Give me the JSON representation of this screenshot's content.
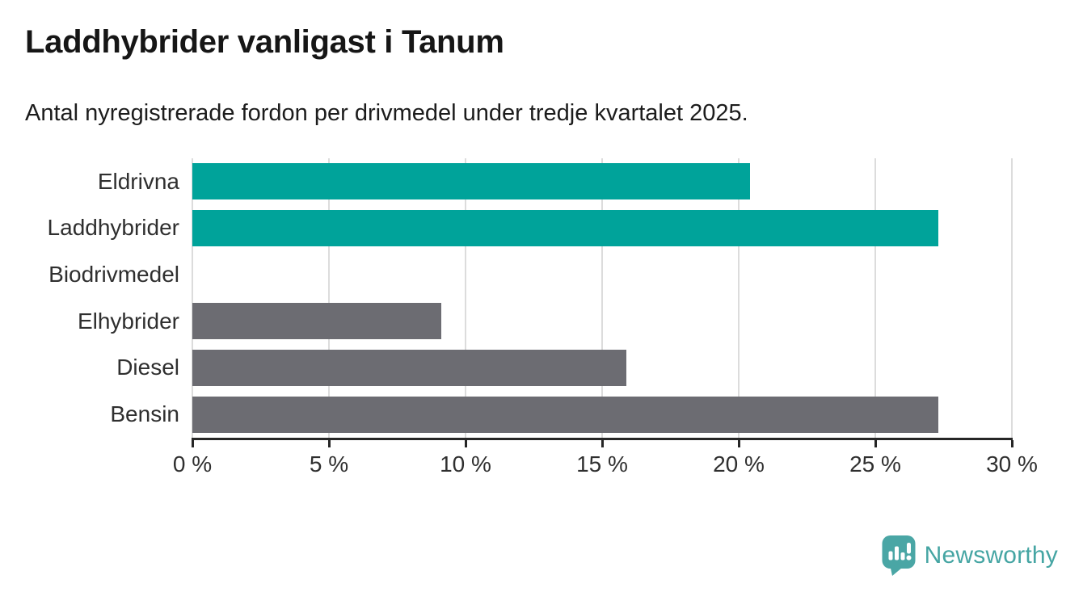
{
  "header": {
    "title": "Laddhybrider vanligast i Tanum",
    "subtitle": "Antal nyregistrerade fordon per drivmedel under tredje kvartalet 2025."
  },
  "chart_data": {
    "type": "bar",
    "orientation": "horizontal",
    "title": "Laddhybrider vanligast i Tanum",
    "subtitle": "Antal nyregistrerade fordon per drivmedel under tredje kvartalet 2025.",
    "categories": [
      "Eldrivna",
      "Laddhybrider",
      "Biodrivmedel",
      "Elhybrider",
      "Diesel",
      "Bensin"
    ],
    "values": [
      20.4,
      27.3,
      0,
      9.1,
      15.9,
      27.3
    ],
    "value_unit": "%",
    "xlim": [
      0,
      30
    ],
    "x_tick_values": [
      0,
      5,
      10,
      15,
      20,
      25,
      30
    ],
    "x_tick_labels": [
      "0 %",
      "5 %",
      "10 %",
      "15 %",
      "20 %",
      "25 %",
      "30 %"
    ],
    "grid": true,
    "legend": "none",
    "bar_colors": [
      "#00a39a",
      "#00a39a",
      "#6c6c72",
      "#6c6c72",
      "#6c6c72",
      "#6c6c72"
    ],
    "xlabel": "",
    "ylabel": ""
  },
  "colors": {
    "accent_teal": "#00a39a",
    "bar_grey": "#6c6c72",
    "gridline": "#dcdcdc",
    "axis": "#262626",
    "brand_teal": "#45a5a3",
    "background": "#ffffff",
    "text_dark": "#161616"
  },
  "footer": {
    "brand": "Newsworthy",
    "logo_icon": "newsworthy-pin-bar-chart-icon"
  }
}
